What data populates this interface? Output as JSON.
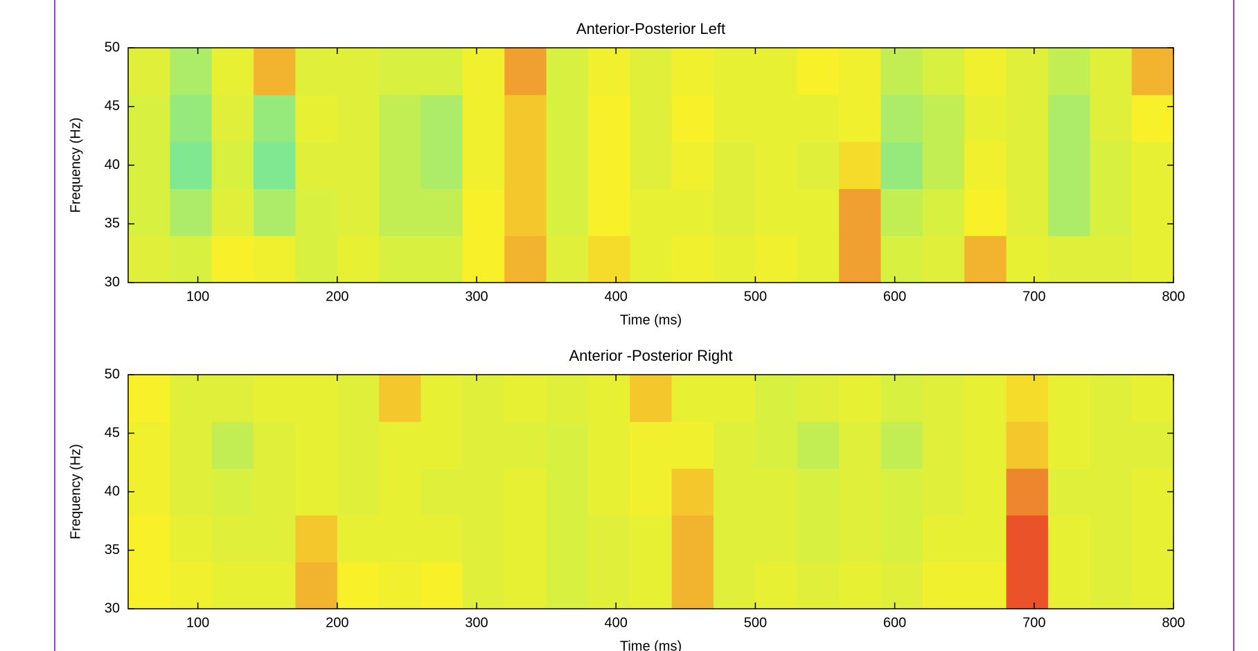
{
  "chart_data": [
    {
      "type": "heatmap",
      "title": "Anterior-Posterior Left",
      "xlabel": "Time (ms)",
      "ylabel": "Frequency (Hz)",
      "xlim": [
        50,
        800
      ],
      "ylim": [
        30,
        50
      ],
      "xticks": [
        100,
        200,
        300,
        400,
        500,
        600,
        700,
        800
      ],
      "yticks": [
        30,
        35,
        40,
        45,
        50
      ],
      "xbins": [
        50,
        80,
        110,
        140,
        170,
        200,
        230,
        260,
        290,
        320,
        350,
        380,
        410,
        440,
        470,
        500,
        530,
        560,
        590,
        620,
        650,
        680,
        710,
        740,
        770,
        800
      ],
      "ybins": [
        30,
        34,
        38,
        42,
        46,
        50
      ],
      "colormap": [
        "#40f0e8",
        "#80e890",
        "#d8f040",
        "#f8f028",
        "#f0a030",
        "#e83828"
      ],
      "clim": [
        0,
        1
      ],
      "z": [
        [
          0.45,
          0.4,
          0.6,
          0.55,
          0.4,
          0.5,
          0.4,
          0.4,
          0.6,
          0.75,
          0.45,
          0.65,
          0.5,
          0.55,
          0.5,
          0.55,
          0.5,
          0.8,
          0.4,
          0.45,
          0.75,
          0.5,
          0.45,
          0.45,
          0.5
        ],
        [
          0.4,
          0.3,
          0.45,
          0.3,
          0.4,
          0.45,
          0.35,
          0.35,
          0.6,
          0.7,
          0.4,
          0.6,
          0.5,
          0.5,
          0.45,
          0.5,
          0.5,
          0.8,
          0.35,
          0.4,
          0.6,
          0.45,
          0.3,
          0.4,
          0.5
        ],
        [
          0.4,
          0.2,
          0.4,
          0.2,
          0.45,
          0.45,
          0.35,
          0.3,
          0.55,
          0.7,
          0.4,
          0.6,
          0.45,
          0.55,
          0.45,
          0.5,
          0.45,
          0.65,
          0.25,
          0.35,
          0.55,
          0.45,
          0.3,
          0.4,
          0.5
        ],
        [
          0.4,
          0.25,
          0.45,
          0.25,
          0.5,
          0.45,
          0.35,
          0.3,
          0.55,
          0.7,
          0.4,
          0.6,
          0.45,
          0.6,
          0.5,
          0.5,
          0.5,
          0.55,
          0.3,
          0.35,
          0.5,
          0.45,
          0.3,
          0.45,
          0.6
        ],
        [
          0.45,
          0.3,
          0.5,
          0.75,
          0.45,
          0.45,
          0.4,
          0.4,
          0.55,
          0.8,
          0.4,
          0.55,
          0.45,
          0.55,
          0.5,
          0.5,
          0.6,
          0.55,
          0.35,
          0.4,
          0.55,
          0.45,
          0.35,
          0.45,
          0.75
        ]
      ]
    },
    {
      "type": "heatmap",
      "title": "Anterior -Posterior Right",
      "xlabel": "Time (ms)",
      "ylabel": "Frequency (Hz)",
      "xlim": [
        50,
        800
      ],
      "ylim": [
        30,
        50
      ],
      "xticks": [
        100,
        200,
        300,
        400,
        500,
        600,
        700,
        800
      ],
      "yticks": [
        30,
        35,
        40,
        45,
        50
      ],
      "xbins": [
        50,
        80,
        110,
        140,
        170,
        200,
        230,
        260,
        290,
        320,
        350,
        380,
        410,
        440,
        470,
        500,
        530,
        560,
        590,
        620,
        650,
        680,
        710,
        740,
        770,
        800
      ],
      "ybins": [
        30,
        34,
        38,
        42,
        46,
        50
      ],
      "colormap": [
        "#40f0e8",
        "#80e890",
        "#d8f040",
        "#f8f028",
        "#f0a030",
        "#e83828"
      ],
      "clim": [
        0,
        1
      ],
      "z": [
        [
          0.6,
          0.55,
          0.5,
          0.5,
          0.75,
          0.6,
          0.55,
          0.6,
          0.45,
          0.5,
          0.4,
          0.45,
          0.5,
          0.75,
          0.45,
          0.5,
          0.45,
          0.5,
          0.45,
          0.55,
          0.55,
          0.95,
          0.5,
          0.45,
          0.5
        ],
        [
          0.6,
          0.5,
          0.45,
          0.45,
          0.7,
          0.5,
          0.5,
          0.5,
          0.45,
          0.5,
          0.4,
          0.45,
          0.5,
          0.75,
          0.45,
          0.45,
          0.4,
          0.45,
          0.4,
          0.5,
          0.5,
          0.95,
          0.5,
          0.45,
          0.5
        ],
        [
          0.55,
          0.45,
          0.4,
          0.45,
          0.5,
          0.45,
          0.5,
          0.45,
          0.45,
          0.5,
          0.4,
          0.5,
          0.55,
          0.7,
          0.45,
          0.45,
          0.4,
          0.45,
          0.4,
          0.45,
          0.5,
          0.85,
          0.45,
          0.45,
          0.5
        ],
        [
          0.55,
          0.45,
          0.35,
          0.45,
          0.5,
          0.45,
          0.5,
          0.5,
          0.45,
          0.45,
          0.4,
          0.5,
          0.55,
          0.55,
          0.45,
          0.4,
          0.35,
          0.45,
          0.35,
          0.45,
          0.5,
          0.7,
          0.5,
          0.45,
          0.45
        ],
        [
          0.6,
          0.45,
          0.45,
          0.5,
          0.5,
          0.45,
          0.7,
          0.5,
          0.45,
          0.5,
          0.45,
          0.5,
          0.7,
          0.5,
          0.5,
          0.4,
          0.45,
          0.5,
          0.4,
          0.45,
          0.5,
          0.65,
          0.5,
          0.45,
          0.5
        ]
      ]
    }
  ]
}
